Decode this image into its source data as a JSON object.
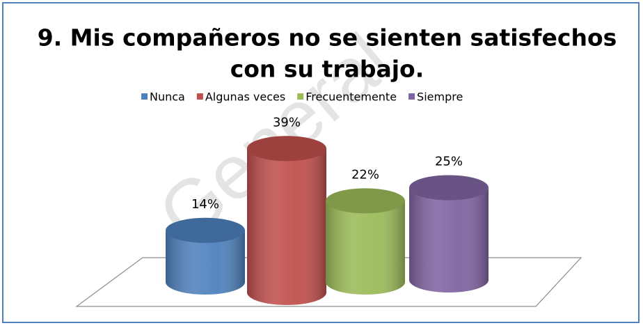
{
  "chart_data": {
    "type": "bar",
    "title": [
      "9. Mis compañeros no se sienten satisfechos",
      "con su trabajo."
    ],
    "watermark": "General",
    "series": [
      {
        "name": "Nunca",
        "color": "#4f81bd",
        "values": [
          14
        ],
        "value_labels": [
          "14%"
        ]
      },
      {
        "name": "Algunas veces",
        "color": "#c0504d",
        "values": [
          39
        ],
        "value_labels": [
          "39%"
        ]
      },
      {
        "name": "Frecuentemente",
        "color": "#9bbb59",
        "values": [
          22
        ],
        "value_labels": [
          "22%"
        ]
      },
      {
        "name": "Siempre",
        "color": "#8064a2",
        "values": [
          25
        ],
        "value_labels": [
          "25%"
        ]
      }
    ],
    "legend": "top"
  }
}
